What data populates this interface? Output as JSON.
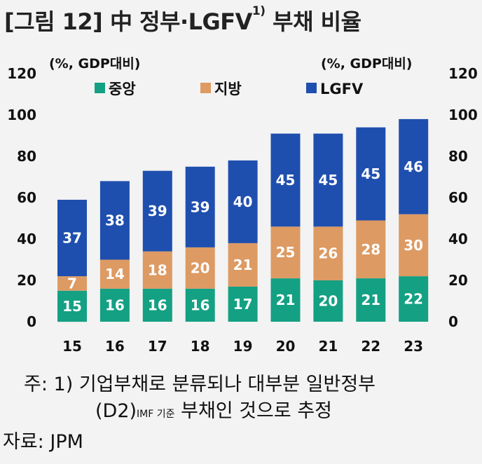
{
  "title": {
    "prefix": "[그림 12]  中 정부·LGFV",
    "sup": "1)",
    "suffix": " 부채 비율"
  },
  "unit_left": "(%, GDP대비)",
  "unit_right": "(%, GDP대비)",
  "chart_data": {
    "type": "bar",
    "stacked": true,
    "categories": [
      "15",
      "16",
      "17",
      "18",
      "19",
      "20",
      "21",
      "22",
      "23"
    ],
    "series": [
      {
        "name": "중앙",
        "color": "#14a083",
        "values": [
          15,
          16,
          16,
          16,
          17,
          21,
          20,
          21,
          22
        ]
      },
      {
        "name": "지방",
        "color": "#dd9a63",
        "values": [
          7,
          14,
          18,
          20,
          21,
          25,
          26,
          28,
          30
        ]
      },
      {
        "name": "LGFV",
        "color": "#1f4fae",
        "values": [
          37,
          38,
          39,
          39,
          40,
          45,
          45,
          45,
          46
        ]
      }
    ],
    "ylim": [
      0,
      120
    ],
    "yticks": [
      "0",
      "20",
      "40",
      "60",
      "80",
      "100",
      "120"
    ],
    "legend_position": "top"
  },
  "notes": {
    "line1": "주:  1)  기업부채로 분류되나 대부분 일반정부",
    "line2_main": "(D2)",
    "line2_sub": "IMF  기준",
    "line2_rest": "  부채인 것으로 추정",
    "source": "자료:  JPM"
  }
}
